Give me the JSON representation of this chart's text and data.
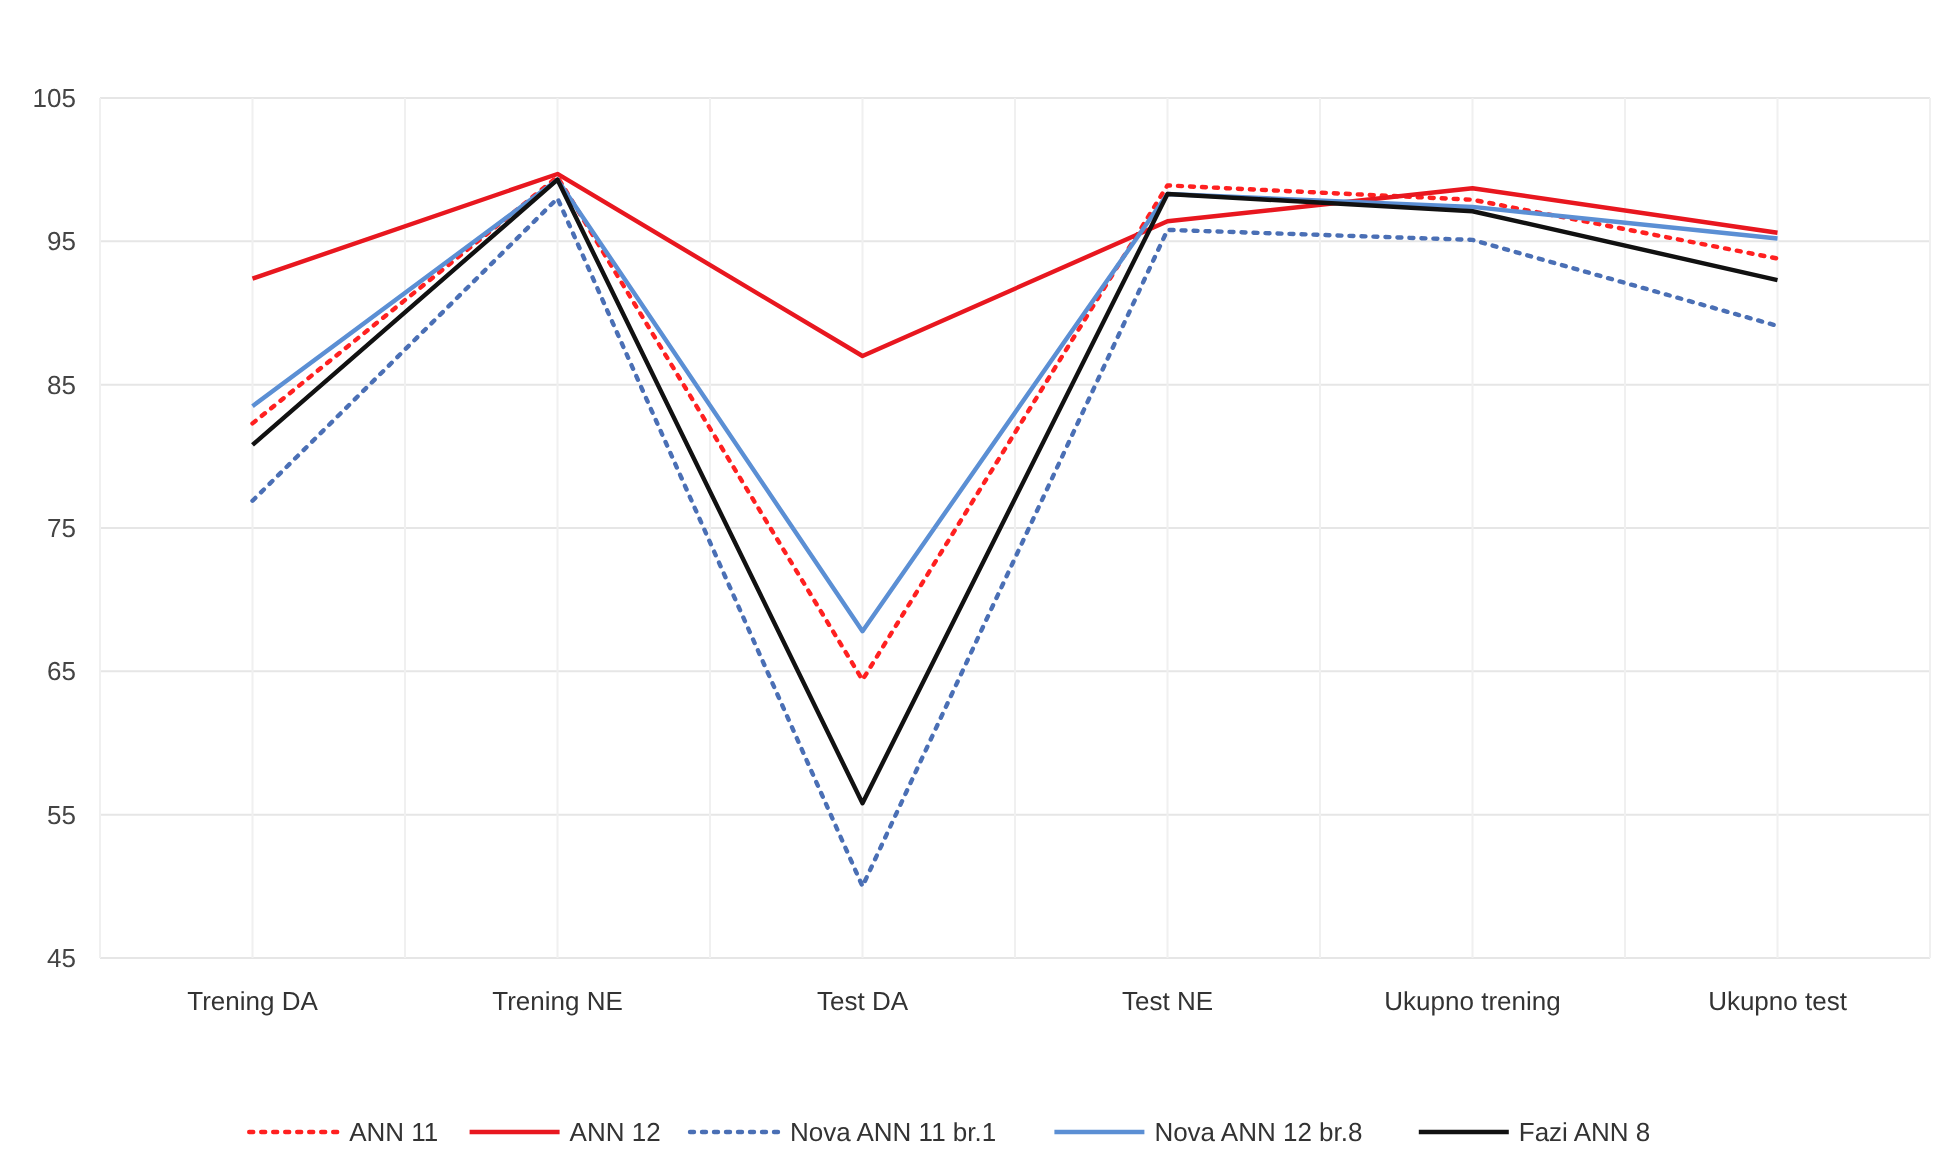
{
  "chart_data": {
    "type": "line",
    "categories": [
      "Trening DA",
      "Trening NE",
      "Test DA",
      "Test NE",
      "Ukupno trening",
      "Ukupno test"
    ],
    "ylim": [
      45,
      105
    ],
    "yticks": [
      45,
      55,
      65,
      75,
      85,
      95,
      105
    ],
    "grid": true,
    "legend": "bottom",
    "marker": "none",
    "series": [
      {
        "name": "ANN 11",
        "color": "#ff2020",
        "line_style": "dotted",
        "values": [
          82.3,
          99.5,
          64.4,
          98.9,
          97.9,
          93.8
        ]
      },
      {
        "name": "ANN 12",
        "color": "#e8171f",
        "line_style": "solid",
        "values": [
          92.4,
          99.7,
          87.0,
          96.4,
          98.7,
          95.6
        ]
      },
      {
        "name": "Nova ANN 11 br.1",
        "color": "#4a6fb5",
        "line_style": "dotted",
        "values": [
          76.9,
          98.0,
          50.0,
          95.8,
          95.1,
          89.1
        ]
      },
      {
        "name": "Nova ANN 12 br.8",
        "color": "#5b8fd4",
        "line_style": "solid",
        "values": [
          83.5,
          99.3,
          67.8,
          98.3,
          97.4,
          95.2
        ]
      },
      {
        "name": "Fazi ANN 8",
        "color": "#111111",
        "line_style": "solid",
        "values": [
          80.8,
          99.3,
          55.8,
          98.3,
          97.1,
          92.3
        ]
      }
    ]
  }
}
